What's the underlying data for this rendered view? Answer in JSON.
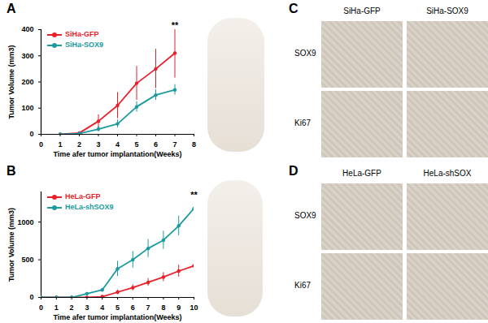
{
  "chart_data": [
    {
      "type": "line",
      "x_label": "Time afer tumor implantation(Weeks)",
      "y_label": "Tumor Volume (mm3)",
      "x": [
        1,
        2,
        3,
        4,
        5,
        6,
        7
      ],
      "series": [
        {
          "name": "SiHa-GFP",
          "color": "#e8202a",
          "marker": "circle",
          "values": [
            0,
            5,
            50,
            110,
            195,
            250,
            310
          ],
          "errors": [
            0,
            5,
            25,
            50,
            65,
            75,
            95
          ]
        },
        {
          "name": "SiHa-SOX9",
          "color": "#1b9aa0",
          "marker": "circle",
          "values": [
            0,
            3,
            20,
            40,
            105,
            150,
            170
          ],
          "errors": [
            0,
            3,
            10,
            15,
            20,
            20,
            20
          ]
        }
      ],
      "xlim": [
        0,
        8
      ],
      "xticks": [
        0,
        1,
        2,
        3,
        4,
        5,
        6,
        7,
        8
      ],
      "ylim": [
        0,
        400
      ],
      "yticks": [
        0,
        100,
        200,
        300,
        400
      ],
      "legend": "top-left",
      "annotations": [
        {
          "x": 7,
          "y": 415,
          "text": "**"
        }
      ]
    },
    {
      "type": "line",
      "x_label": "Time afer tumor implantation(Weeks)",
      "y_label": "Tumor Volume (mm3)",
      "x": [
        0,
        1,
        2,
        3,
        4,
        5,
        6,
        7,
        8,
        9,
        10
      ],
      "series": [
        {
          "name": "HeLa-GFP",
          "color": "#e8202a",
          "marker": "circle",
          "values": [
            0,
            0,
            0,
            0,
            10,
            70,
            130,
            200,
            270,
            350,
            420
          ],
          "errors": [
            0,
            0,
            0,
            0,
            5,
            30,
            40,
            50,
            60,
            80,
            100
          ]
        },
        {
          "name": "HeLa-shSOX9",
          "color": "#1b9aa0",
          "marker": "circle",
          "values": [
            0,
            0,
            0,
            50,
            100,
            380,
            500,
            650,
            760,
            950,
            1180
          ],
          "errors": [
            0,
            0,
            0,
            10,
            20,
            100,
            110,
            120,
            120,
            130,
            150
          ]
        }
      ],
      "xlim": [
        0,
        10
      ],
      "xticks": [
        0,
        1,
        2,
        3,
        4,
        5,
        6,
        7,
        8,
        9,
        10
      ],
      "ylim": [
        0,
        1400
      ],
      "yticks": [
        0,
        500,
        1000
      ],
      "legend": "top-left",
      "annotations": [
        {
          "x": 10,
          "y": 1360,
          "text": "**"
        }
      ]
    }
  ],
  "figure": {
    "panel_labels": [
      "A",
      "B",
      "C",
      "D"
    ],
    "ihc_panels": [
      {
        "label": "C",
        "columns": [
          "SiHa-GFP",
          "SiHa-SOX9"
        ],
        "rows": [
          "SOX9",
          "Ki67"
        ]
      },
      {
        "label": "D",
        "columns": [
          "HeLa-GFP",
          "HeLa-shSOX"
        ],
        "rows": [
          "SOX9",
          "Ki67"
        ]
      }
    ]
  }
}
